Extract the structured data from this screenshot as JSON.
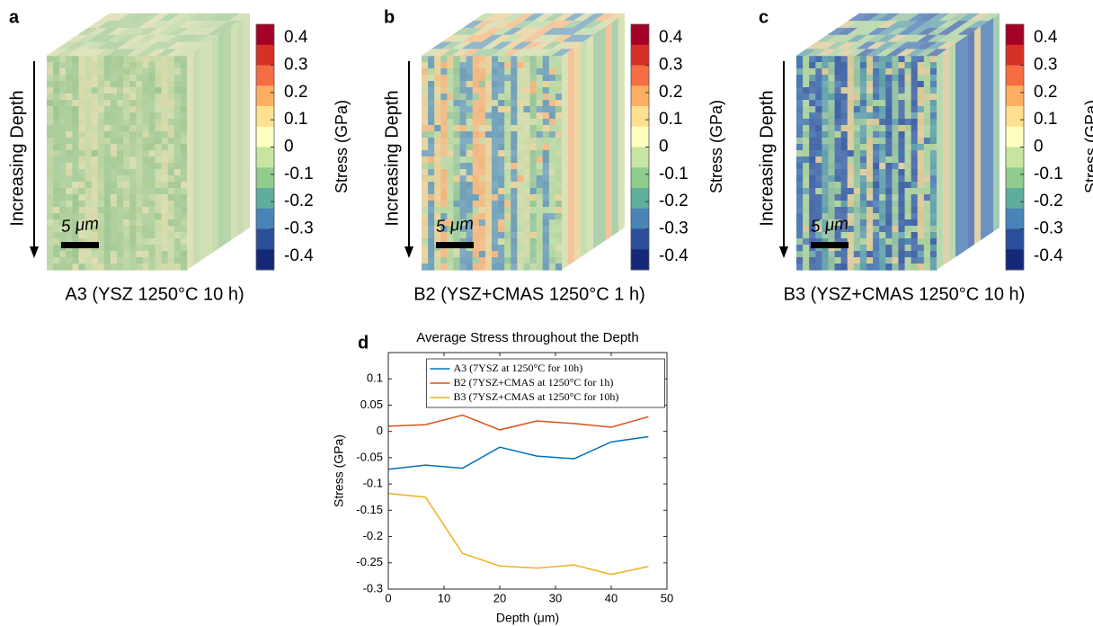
{
  "panels": [
    {
      "label": "a",
      "caption": "A3 (YSZ 1250°C 10 h)",
      "depth_label": "Increasing Depth",
      "scale_bar": "5 μm",
      "colorbar": {
        "label": "Stress (GPa)",
        "lim": [
          -0.45,
          0.45
        ],
        "ticks": [
          0.4,
          0.3,
          0.2,
          0.1,
          0,
          -0.1,
          -0.2,
          -0.3,
          -0.4
        ],
        "colormap": [
          "#a50026",
          "#d73027",
          "#f46d43",
          "#fdae61",
          "#fee090",
          "#ffffbf",
          "#c7e5a0",
          "#91cc8f",
          "#5fae9c",
          "#4a83b6",
          "#2b4f9a",
          "#14287a"
        ]
      }
    },
    {
      "label": "b",
      "caption": "B2 (YSZ+CMAS 1250°C 1 h)",
      "depth_label": "Increasing Depth",
      "scale_bar": "5 μm",
      "colorbar": {
        "label": "Stress (GPa)",
        "lim": [
          -0.45,
          0.45
        ],
        "ticks": [
          0.4,
          0.3,
          0.2,
          0.1,
          0,
          -0.1,
          -0.2,
          -0.3,
          -0.4
        ],
        "colormap": [
          "#a50026",
          "#d73027",
          "#f46d43",
          "#fdae61",
          "#fee090",
          "#ffffbf",
          "#c7e5a0",
          "#91cc8f",
          "#5fae9c",
          "#4a83b6",
          "#2b4f9a",
          "#14287a"
        ]
      }
    },
    {
      "label": "c",
      "caption": "B3 (YSZ+CMAS 1250°C 10 h)",
      "depth_label": "Increasing Depth",
      "scale_bar": "5 μm",
      "colorbar": {
        "label": "Stress (GPa)",
        "lim": [
          -0.45,
          0.45
        ],
        "ticks": [
          0.4,
          0.3,
          0.2,
          0.1,
          0,
          -0.1,
          -0.2,
          -0.3,
          -0.4
        ],
        "colormap": [
          "#a50026",
          "#d73027",
          "#f46d43",
          "#fdae61",
          "#fee090",
          "#ffffbf",
          "#c7e5a0",
          "#91cc8f",
          "#5fae9c",
          "#4a83b6",
          "#2b4f9a",
          "#14287a"
        ]
      }
    }
  ],
  "chart_data": {
    "type": "line",
    "label": "d",
    "title": "Average Stress throughout the Depth",
    "x_label": "Depth (μm)",
    "y_label": "Stress (GPa)",
    "x": [
      0,
      6.67,
      13.33,
      20,
      26.67,
      33.33,
      40,
      46.67
    ],
    "series": [
      {
        "name": "A3 (7YSZ at 1250°C for 10h)",
        "color": "#0072bd",
        "values": [
          -0.072,
          -0.064,
          -0.07,
          -0.03,
          -0.047,
          -0.052,
          -0.02,
          -0.01
        ]
      },
      {
        "name": "B2 (7YSZ+CMAS at 1250°C for 1h)",
        "color": "#d95319",
        "values": [
          0.01,
          0.013,
          0.031,
          0.003,
          0.02,
          0.015,
          0.008,
          0.028
        ]
      },
      {
        "name": "B3 (7YSZ+CMAS at 1250°C for 10h)",
        "color": "#edb120",
        "values": [
          -0.118,
          -0.125,
          -0.232,
          -0.256,
          -0.26,
          -0.254,
          -0.272,
          -0.257
        ]
      }
    ],
    "xlim": [
      0,
      50
    ],
    "xticks": [
      0,
      10,
      20,
      30,
      40,
      50
    ],
    "ylim": [
      -0.3,
      0.15
    ],
    "yticks": [
      -0.3,
      -0.25,
      -0.2,
      -0.15,
      -0.1,
      -0.05,
      0,
      0.05,
      0.1
    ],
    "legend": "north"
  }
}
